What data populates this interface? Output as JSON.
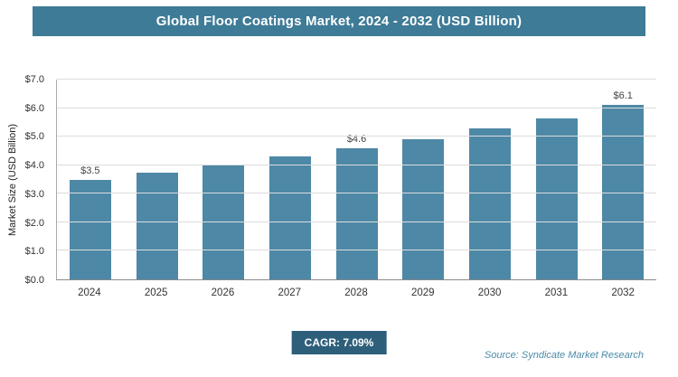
{
  "header": {
    "title": "Global Floor Coatings Market, 2024 - 2032 (USD Billion)"
  },
  "chart_data": {
    "type": "bar",
    "categories": [
      "2024",
      "2025",
      "2026",
      "2027",
      "2028",
      "2029",
      "2030",
      "2031",
      "2032"
    ],
    "values": [
      3.5,
      3.75,
      4.0,
      4.3,
      4.6,
      4.9,
      5.3,
      5.65,
      6.1
    ],
    "value_labels": {
      "2024": "$3.5",
      "2028": "$4.6",
      "2032": "$6.1"
    },
    "title": "Global Floor Coatings Market, 2024 - 2032 (USD Billion)",
    "xlabel": "",
    "ylabel": "Market Size (USD Billion)",
    "ylim": [
      0,
      7
    ],
    "ytick_step": 1,
    "ytick_labels": [
      "$0.0",
      "$1.0",
      "$2.0",
      "$3.0",
      "$4.0",
      "$5.0",
      "$6.0",
      "$7.0"
    ],
    "grid": true,
    "legend": "none",
    "bar_color": "#4d88a6"
  },
  "footer": {
    "cagr_label": "CAGR: 7.09%",
    "source": "Source: Syndicate Market Research"
  },
  "colors": {
    "header_bg": "#3e7b97",
    "bar": "#4d88a6",
    "cagr_badge_bg": "#2d5f7a",
    "source_text": "#4b8ba8",
    "gridline": "#dcdcdc"
  }
}
